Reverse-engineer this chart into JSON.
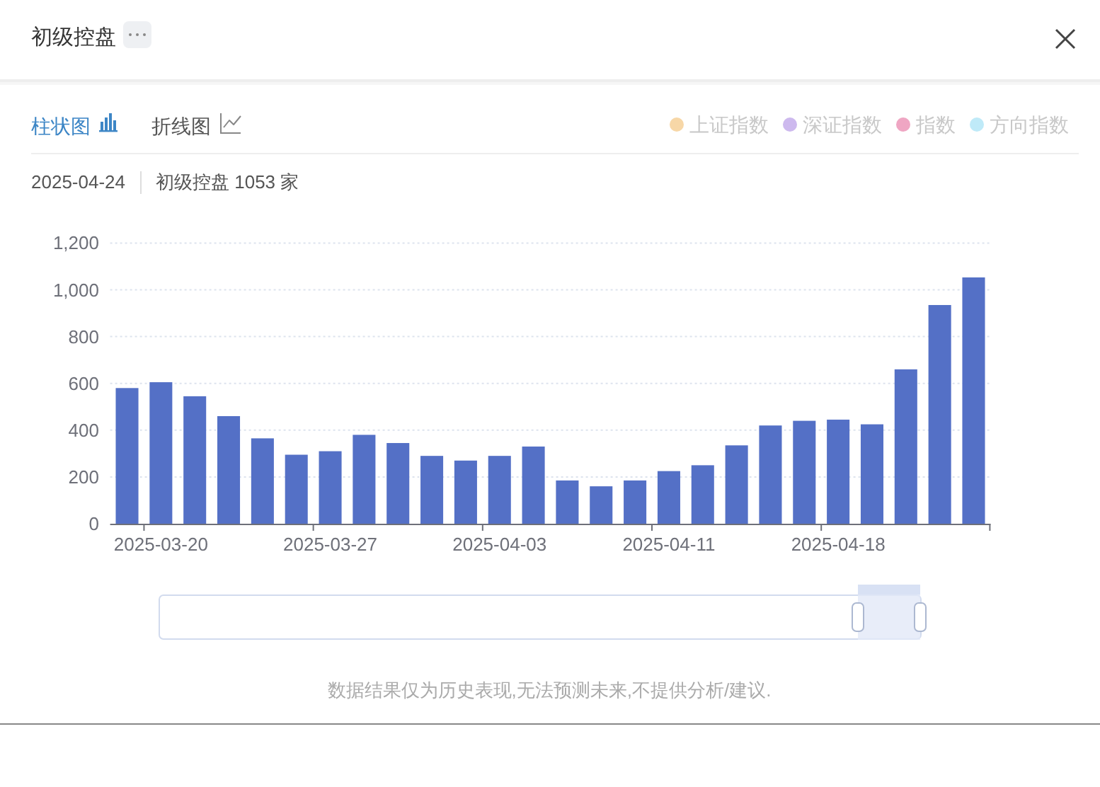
{
  "chart_data": {
    "type": "bar",
    "title": "初级控盘",
    "annotations": [
      "柱状图",
      "折线图",
      "2025-04-24",
      "初级控盘 1053 家",
      "数据结果仅为历史表现,无法预测未来,不提供分析/建议."
    ],
    "categories": [
      null,
      "2025-03-20",
      null,
      null,
      null,
      null,
      "2025-03-27",
      null,
      null,
      null,
      null,
      "2025-04-03",
      null,
      null,
      null,
      null,
      "2025-04-11",
      null,
      null,
      null,
      null,
      "2025-04-18",
      null,
      null,
      null,
      null
    ],
    "series": [
      {
        "color": "#5470c6",
        "values": [
          580,
          605,
          545,
          460,
          365,
          295,
          310,
          380,
          345,
          290,
          270,
          290,
          330,
          185,
          160,
          185,
          225,
          250,
          335,
          420,
          440,
          445,
          425,
          660,
          935,
          1053
        ]
      },
      {
        "name": "上证指数",
        "color": "#f7d7a7",
        "values": [
          null,
          null,
          null,
          null,
          null,
          null,
          null,
          null,
          null,
          null,
          null,
          null,
          null,
          null,
          null,
          null,
          null,
          null,
          null,
          null,
          null,
          null,
          null,
          null,
          null,
          null
        ]
      },
      {
        "name": "深证指数",
        "color": "#cdb9ee",
        "values": [
          null,
          null,
          null,
          null,
          null,
          null,
          null,
          null,
          null,
          null,
          null,
          null,
          null,
          null,
          null,
          null,
          null,
          null,
          null,
          null,
          null,
          null,
          null,
          null,
          null,
          null
        ]
      },
      {
        "name": "指数",
        "color": "#efa6c3",
        "values": [
          null,
          null,
          null,
          null,
          null,
          null,
          null,
          null,
          null,
          null,
          null,
          null,
          null,
          null,
          null,
          null,
          null,
          null,
          null,
          null,
          null,
          null,
          null,
          null,
          null,
          null
        ]
      },
      {
        "name": "方向指数",
        "color": "#bfeaf8",
        "values": [
          null,
          null,
          null,
          null,
          null,
          null,
          null,
          null,
          null,
          null,
          null,
          null,
          null,
          null,
          null,
          null,
          null,
          null,
          null,
          null,
          null,
          null,
          null,
          null,
          null,
          null
        ]
      }
    ],
    "ylim": [
      0,
      1200
    ],
    "yticks": [
      0,
      200,
      400,
      600,
      800,
      {
        "value": 1000,
        "label": "1,000"
      },
      {
        "value": 1200,
        "label": "1,200"
      }
    ],
    "grid": "y",
    "legend": "top right"
  }
}
